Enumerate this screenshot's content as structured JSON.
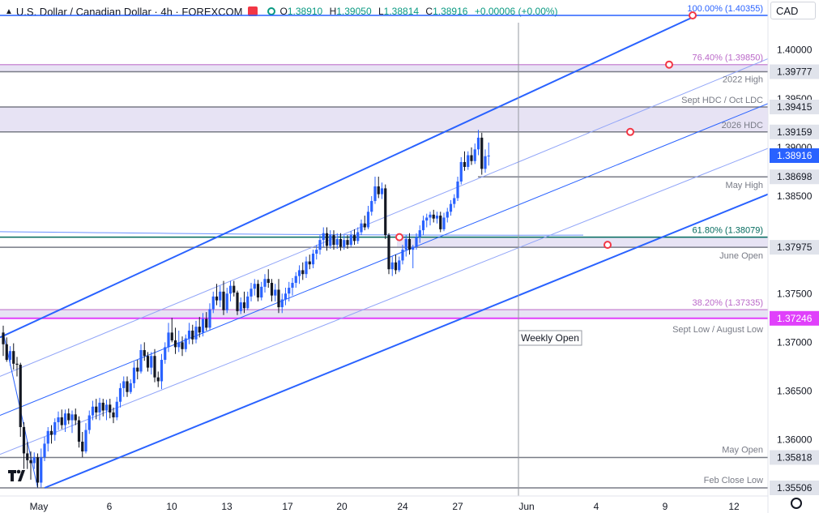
{
  "header": {
    "title": "U.S. Dollar / Canadian Dollar · 4h · FOREXCOM",
    "o_label": "O",
    "o_value": "1.38910",
    "h_label": "H",
    "h_value": "1.39050",
    "l_label": "L",
    "l_value": "1.38814",
    "c_label": "C",
    "c_value": "1.38916",
    "change": "+0.00006 (+0.00%)"
  },
  "currency": "CAD",
  "colors": {
    "up": "#2962ff",
    "down": "#131722",
    "channel": "#2962ff",
    "level": "#787b86",
    "fib": "#ce93d8",
    "zone": "#e7e3f4",
    "accent": "#2962ff",
    "price_bg": "#2962ff",
    "magenta": "#e040fb",
    "red_marker": "#f23645"
  },
  "chart_data": {
    "type": "candlestick",
    "symbol": "USD/CAD",
    "timeframe": "4h",
    "ylim": [
      1.3548,
      1.4045
    ],
    "y_ticks": [
      "1.40000",
      "1.39500",
      "1.39000",
      "1.38500",
      "1.37500",
      "1.37000",
      "1.36500",
      "1.36000"
    ],
    "x_labels": [
      "May",
      "6",
      "10",
      "13",
      "17",
      "20",
      "24",
      "27",
      "Jun",
      "4",
      "9",
      "12"
    ],
    "price_labels": [
      {
        "value": 1.39777,
        "text": "1.39777"
      },
      {
        "value": 1.39415,
        "text": "1.39415"
      },
      {
        "value": 1.39159,
        "text": "1.39159"
      },
      {
        "value": 1.38916,
        "text": "1.38916",
        "current": true
      },
      {
        "value": 1.38698,
        "text": "1.38698"
      },
      {
        "value": 1.37975,
        "text": "1.37975"
      },
      {
        "value": 1.37246,
        "text": "1.37246",
        "magenta": true
      },
      {
        "value": 1.35818,
        "text": "1.35818"
      },
      {
        "value": 1.35506,
        "text": "1.35506"
      }
    ],
    "annotations": [
      {
        "text": "100.00% (1.40355)",
        "value": 1.40355,
        "style": "blue"
      },
      {
        "text": "76.40% (1.39850)",
        "value": 1.3985,
        "style": "fib"
      },
      {
        "text": "2022 High",
        "value": 1.39777,
        "style": "level"
      },
      {
        "text": "Sept HDC / Oct LDC",
        "value": 1.39415,
        "style": "level"
      },
      {
        "text": "2026 HDC",
        "value": 1.39159,
        "style": "level"
      },
      {
        "text": "May High",
        "value": 1.38698,
        "style": "level"
      },
      {
        "text": "61.80% (1.38079)",
        "value": 1.38079,
        "style": "teal"
      },
      {
        "text": "June Open",
        "value": 1.37975,
        "style": "level"
      },
      {
        "text": "38.20% (1.37335)",
        "value": 1.37335,
        "style": "fib"
      },
      {
        "text": "Sept Low / August Low",
        "value": 1.37246,
        "style": "level"
      },
      {
        "text": "May Open",
        "value": 1.35818,
        "style": "level"
      },
      {
        "text": "Feb Close Low",
        "value": 1.35506,
        "style": "level"
      }
    ],
    "weekly_open_label": "Weekly Open",
    "weekly_open_day": 31.5,
    "day_ticks": [
      0,
      6,
      10,
      13,
      17,
      20,
      24,
      27,
      31.5,
      35,
      40,
      44
    ],
    "candles": [
      [
        0.0,
        1.371,
        1.3717,
        1.3686,
        1.3698
      ],
      [
        0.25,
        1.3698,
        1.3705,
        1.368,
        1.3682
      ],
      [
        0.5,
        1.3682,
        1.3696,
        1.3676,
        1.3691
      ],
      [
        0.75,
        1.3691,
        1.3699,
        1.3672,
        1.3678
      ],
      [
        1.0,
        1.3678,
        1.3685,
        1.3665,
        1.3677
      ],
      [
        1.25,
        1.3677,
        1.3679,
        1.3603,
        1.3613
      ],
      [
        1.5,
        1.3613,
        1.3618,
        1.357,
        1.3586
      ],
      [
        1.75,
        1.3586,
        1.3598,
        1.357,
        1.3579
      ],
      [
        2.0,
        1.3579,
        1.3588,
        1.3559,
        1.3576
      ],
      [
        2.25,
        1.3576,
        1.3587,
        1.357,
        1.3582
      ],
      [
        2.5,
        1.3582,
        1.3586,
        1.3551,
        1.3556
      ],
      [
        2.75,
        1.3556,
        1.3591,
        1.3551,
        1.3582
      ],
      [
        3.0,
        1.3582,
        1.3603,
        1.3578,
        1.3596
      ],
      [
        3.25,
        1.3596,
        1.3613,
        1.3588,
        1.3609
      ],
      [
        3.5,
        1.3609,
        1.3615,
        1.3596,
        1.3605
      ],
      [
        3.75,
        1.3605,
        1.3622,
        1.3599,
        1.3618
      ],
      [
        4.0,
        1.3618,
        1.3629,
        1.361,
        1.3623
      ],
      [
        4.25,
        1.3623,
        1.3631,
        1.3611,
        1.3615
      ],
      [
        4.5,
        1.3615,
        1.3631,
        1.3608,
        1.3627
      ],
      [
        4.75,
        1.3627,
        1.3632,
        1.3616,
        1.362
      ],
      [
        5.0,
        1.362,
        1.363,
        1.3607,
        1.3626
      ],
      [
        5.25,
        1.3626,
        1.3632,
        1.3615,
        1.362
      ],
      [
        5.5,
        1.362,
        1.3624,
        1.3592,
        1.3598
      ],
      [
        5.75,
        1.3598,
        1.3608,
        1.3582,
        1.3588
      ],
      [
        6.0,
        1.3588,
        1.3617,
        1.3586,
        1.361
      ],
      [
        6.25,
        1.361,
        1.363,
        1.3606,
        1.3625
      ],
      [
        6.5,
        1.3625,
        1.364,
        1.362,
        1.3634
      ],
      [
        6.75,
        1.3634,
        1.3642,
        1.3621,
        1.3628
      ],
      [
        7.0,
        1.3628,
        1.3643,
        1.362,
        1.3638
      ],
      [
        7.25,
        1.3638,
        1.3642,
        1.3624,
        1.363
      ],
      [
        7.5,
        1.363,
        1.3641,
        1.362,
        1.3636
      ],
      [
        7.75,
        1.3636,
        1.3642,
        1.3622,
        1.3628
      ],
      [
        8.0,
        1.3628,
        1.3633,
        1.3617,
        1.3623
      ],
      [
        8.25,
        1.3623,
        1.3644,
        1.362,
        1.3639
      ],
      [
        8.5,
        1.3639,
        1.3658,
        1.3633,
        1.3653
      ],
      [
        8.75,
        1.3653,
        1.3665,
        1.3644,
        1.366
      ],
      [
        9.0,
        1.366,
        1.3665,
        1.3644,
        1.3649
      ],
      [
        9.25,
        1.3649,
        1.3662,
        1.3647,
        1.3658
      ],
      [
        9.5,
        1.3658,
        1.368,
        1.3653,
        1.3674
      ],
      [
        9.75,
        1.3674,
        1.3682,
        1.3662,
        1.367
      ],
      [
        10.0,
        1.367,
        1.3698,
        1.3668,
        1.3692
      ],
      [
        10.25,
        1.3692,
        1.37,
        1.3681,
        1.3686
      ],
      [
        10.5,
        1.3686,
        1.369,
        1.367,
        1.3674
      ],
      [
        10.75,
        1.3674,
        1.369,
        1.3667,
        1.3686
      ],
      [
        11.0,
        1.3686,
        1.3693,
        1.3659,
        1.3664
      ],
      [
        11.25,
        1.3664,
        1.367,
        1.3654,
        1.366
      ],
      [
        11.5,
        1.366,
        1.3688,
        1.3652,
        1.3682
      ],
      [
        11.75,
        1.3682,
        1.37,
        1.3678,
        1.3695
      ],
      [
        12.0,
        1.3695,
        1.372,
        1.369,
        1.371
      ],
      [
        12.25,
        1.371,
        1.3725,
        1.37,
        1.3702
      ],
      [
        12.5,
        1.3702,
        1.3715,
        1.3688,
        1.3695
      ],
      [
        12.75,
        1.3695,
        1.3712,
        1.369,
        1.37
      ],
      [
        13.0,
        1.37,
        1.3706,
        1.3686,
        1.3693
      ],
      [
        13.25,
        1.3693,
        1.3708,
        1.369,
        1.3704
      ],
      [
        13.5,
        1.3704,
        1.372,
        1.3698,
        1.3712
      ],
      [
        13.75,
        1.3712,
        1.3718,
        1.3698,
        1.3703
      ],
      [
        14.0,
        1.3703,
        1.3722,
        1.3699,
        1.3716
      ],
      [
        14.25,
        1.3716,
        1.3726,
        1.3705,
        1.371
      ],
      [
        14.5,
        1.371,
        1.373,
        1.3706,
        1.3724
      ],
      [
        14.75,
        1.3724,
        1.3731,
        1.3712,
        1.3715
      ],
      [
        15.0,
        1.3715,
        1.374,
        1.3713,
        1.3734
      ],
      [
        15.25,
        1.3734,
        1.3752,
        1.373,
        1.3747
      ],
      [
        15.5,
        1.3747,
        1.376,
        1.3738,
        1.3743
      ],
      [
        15.75,
        1.3743,
        1.3758,
        1.3736,
        1.3752
      ],
      [
        16.0,
        1.3752,
        1.3763,
        1.3728,
        1.3733
      ],
      [
        16.25,
        1.3733,
        1.3756,
        1.373,
        1.375
      ],
      [
        16.5,
        1.375,
        1.3763,
        1.3742,
        1.3758
      ],
      [
        16.75,
        1.3758,
        1.3763,
        1.3747,
        1.3751
      ],
      [
        17.0,
        1.3751,
        1.3753,
        1.3728,
        1.3732
      ],
      [
        17.25,
        1.3732,
        1.3746,
        1.3729,
        1.3741
      ],
      [
        17.5,
        1.3741,
        1.3752,
        1.373,
        1.3735
      ],
      [
        17.75,
        1.3735,
        1.3752,
        1.3733,
        1.3747
      ],
      [
        18.0,
        1.3747,
        1.3761,
        1.3742,
        1.3755
      ],
      [
        18.25,
        1.3755,
        1.3765,
        1.3748,
        1.376
      ],
      [
        18.5,
        1.376,
        1.3764,
        1.3742,
        1.3746
      ],
      [
        18.75,
        1.3746,
        1.3762,
        1.3743,
        1.3757
      ],
      [
        19.0,
        1.3757,
        1.377,
        1.3751,
        1.3765
      ],
      [
        19.25,
        1.3765,
        1.3775,
        1.3756,
        1.3761
      ],
      [
        19.5,
        1.3761,
        1.3765,
        1.3742,
        1.3748
      ],
      [
        19.75,
        1.3748,
        1.376,
        1.3742,
        1.3754
      ],
      [
        20.0,
        1.3754,
        1.3765,
        1.373,
        1.3736
      ],
      [
        20.25,
        1.3736,
        1.375,
        1.373,
        1.3744
      ],
      [
        20.5,
        1.3744,
        1.3756,
        1.3738,
        1.375
      ],
      [
        20.75,
        1.375,
        1.3762,
        1.3742,
        1.3756
      ],
      [
        21.0,
        1.3756,
        1.3766,
        1.3748,
        1.3761
      ],
      [
        21.25,
        1.3761,
        1.3772,
        1.3756,
        1.3768
      ],
      [
        21.5,
        1.3768,
        1.3779,
        1.376,
        1.3774
      ],
      [
        21.75,
        1.3774,
        1.3782,
        1.3764,
        1.377
      ],
      [
        22.0,
        1.377,
        1.3788,
        1.3766,
        1.3783
      ],
      [
        22.25,
        1.3783,
        1.379,
        1.3775,
        1.378
      ],
      [
        22.5,
        1.378,
        1.3795,
        1.3776,
        1.3791
      ],
      [
        22.75,
        1.3791,
        1.38,
        1.3785,
        1.3795
      ],
      [
        23.0,
        1.3795,
        1.381,
        1.379,
        1.3805
      ],
      [
        23.25,
        1.3805,
        1.3818,
        1.3798,
        1.3812
      ],
      [
        23.5,
        1.3812,
        1.3818,
        1.3794,
        1.3799
      ],
      [
        23.75,
        1.3799,
        1.3815,
        1.3796,
        1.381
      ],
      [
        24.0,
        1.381,
        1.3815,
        1.3795,
        1.38
      ],
      [
        24.25,
        1.38,
        1.3812,
        1.3796,
        1.3806
      ],
      [
        24.5,
        1.3806,
        1.3812,
        1.3794,
        1.3798
      ],
      [
        24.75,
        1.3798,
        1.381,
        1.3795,
        1.3805
      ],
      [
        25.0,
        1.3805,
        1.381,
        1.3796,
        1.38
      ],
      [
        25.25,
        1.38,
        1.3814,
        1.3798,
        1.381
      ],
      [
        25.5,
        1.381,
        1.3816,
        1.38,
        1.3804
      ],
      [
        25.75,
        1.3804,
        1.3818,
        1.3801,
        1.3813
      ],
      [
        26.0,
        1.3813,
        1.3826,
        1.381,
        1.3822
      ],
      [
        26.25,
        1.3822,
        1.383,
        1.3815,
        1.3818
      ],
      [
        26.5,
        1.3818,
        1.384,
        1.3816,
        1.3834
      ],
      [
        26.75,
        1.3834,
        1.385,
        1.383,
        1.3845
      ],
      [
        27.0,
        1.3845,
        1.387,
        1.3842,
        1.386
      ],
      [
        27.25,
        1.386,
        1.387,
        1.3848,
        1.3852
      ],
      [
        27.5,
        1.3852,
        1.3864,
        1.3847,
        1.3858
      ],
      [
        27.75,
        1.3858,
        1.3862,
        1.3806,
        1.381
      ],
      [
        28.0,
        1.381,
        1.3812,
        1.377,
        1.3775
      ],
      [
        28.25,
        1.3775,
        1.3788,
        1.3768,
        1.3782
      ],
      [
        28.5,
        1.3782,
        1.379,
        1.377,
        1.3774
      ],
      [
        28.75,
        1.3774,
        1.3788,
        1.3772,
        1.3784
      ],
      [
        29.0,
        1.3784,
        1.38,
        1.378,
        1.3795
      ],
      [
        29.25,
        1.3795,
        1.381,
        1.3788,
        1.3806
      ],
      [
        29.5,
        1.3806,
        1.3812,
        1.379,
        1.3795
      ],
      [
        29.75,
        1.3795,
        1.38,
        1.3776,
        1.3798
      ],
      [
        30.0,
        1.3798,
        1.3812,
        1.3795,
        1.3808
      ],
      [
        30.25,
        1.3808,
        1.382,
        1.3802,
        1.3815
      ],
      [
        30.5,
        1.3815,
        1.383,
        1.381,
        1.3825
      ],
      [
        30.75,
        1.3825,
        1.3832,
        1.3818,
        1.3828
      ],
      [
        31.0,
        1.3828,
        1.3834,
        1.382,
        1.3831
      ],
      [
        31.25,
        1.3831,
        1.3836,
        1.3823,
        1.3827
      ],
      [
        31.5,
        1.3827,
        1.3834,
        1.3822,
        1.383
      ],
      [
        31.75,
        1.383,
        1.3834,
        1.3813,
        1.3816
      ],
      [
        32.0,
        1.3816,
        1.3833,
        1.3814,
        1.3828
      ],
      [
        32.25,
        1.3828,
        1.3838,
        1.3823,
        1.3834
      ],
      [
        32.5,
        1.3834,
        1.3846,
        1.383,
        1.3842
      ],
      [
        32.75,
        1.3842,
        1.3852,
        1.3838,
        1.3848
      ],
      [
        33.0,
        1.3848,
        1.387,
        1.3845,
        1.3865
      ],
      [
        33.25,
        1.3865,
        1.389,
        1.3862,
        1.3885
      ],
      [
        33.5,
        1.3885,
        1.3896,
        1.3876,
        1.388
      ],
      [
        33.75,
        1.388,
        1.3896,
        1.3877,
        1.3892
      ],
      [
        34.0,
        1.3892,
        1.39,
        1.3882,
        1.3886
      ],
      [
        34.25,
        1.3886,
        1.3904,
        1.3883,
        1.3898
      ],
      [
        34.5,
        1.3898,
        1.3918,
        1.3892,
        1.391
      ],
      [
        34.75,
        1.391,
        1.3915,
        1.3872,
        1.3878
      ],
      [
        35.0,
        1.3878,
        1.3898,
        1.3874,
        1.3891
      ],
      [
        35.25,
        1.3891,
        1.3905,
        1.38814,
        1.38916
      ]
    ]
  }
}
